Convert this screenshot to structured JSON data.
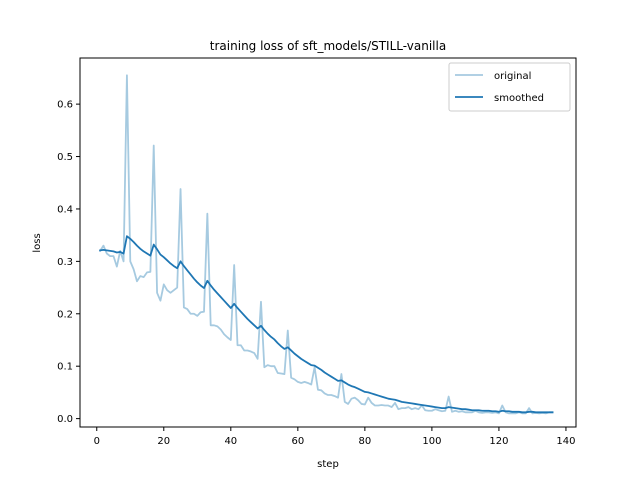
{
  "chart_data": {
    "type": "line",
    "title": "training loss of sft_models/STILL-vanilla",
    "xlabel": "step",
    "ylabel": "loss",
    "xlim": [
      -5,
      143
    ],
    "ylim": [
      -0.016,
      0.688
    ],
    "xticks": [
      0,
      20,
      40,
      60,
      80,
      100,
      120,
      140
    ],
    "yticks": [
      0.0,
      0.1,
      0.2,
      0.3,
      0.4,
      0.5,
      0.6
    ],
    "grid": false,
    "legend_position": "top-right",
    "series": [
      {
        "name": "original",
        "color": "#a6cae0",
        "x": [
          1,
          2,
          3,
          4,
          5,
          6,
          7,
          8,
          9,
          10,
          11,
          12,
          13,
          14,
          15,
          16,
          17,
          18,
          19,
          20,
          21,
          22,
          23,
          24,
          25,
          26,
          27,
          28,
          29,
          30,
          31,
          32,
          33,
          34,
          35,
          36,
          37,
          38,
          39,
          40,
          41,
          42,
          43,
          44,
          45,
          46,
          47,
          48,
          49,
          50,
          51,
          52,
          53,
          54,
          55,
          56,
          57,
          58,
          59,
          60,
          61,
          62,
          63,
          64,
          65,
          66,
          67,
          68,
          69,
          70,
          71,
          72,
          73,
          74,
          75,
          76,
          77,
          78,
          79,
          80,
          81,
          82,
          83,
          84,
          85,
          86,
          87,
          88,
          89,
          90,
          91,
          92,
          93,
          94,
          95,
          96,
          97,
          98,
          99,
          100,
          101,
          102,
          103,
          104,
          105,
          106,
          107,
          108,
          109,
          110,
          111,
          112,
          113,
          114,
          115,
          116,
          117,
          118,
          119,
          120,
          121,
          122,
          123,
          124,
          125,
          126,
          127,
          128,
          129,
          130,
          131,
          132,
          133,
          134,
          135,
          136
        ],
        "values": [
          0.32,
          0.33,
          0.315,
          0.31,
          0.31,
          0.29,
          0.32,
          0.3,
          0.655,
          0.3,
          0.285,
          0.262,
          0.272,
          0.27,
          0.279,
          0.28,
          0.521,
          0.24,
          0.225,
          0.256,
          0.245,
          0.24,
          0.245,
          0.25,
          0.438,
          0.212,
          0.209,
          0.2,
          0.2,
          0.196,
          0.203,
          0.204,
          0.391,
          0.178,
          0.178,
          0.176,
          0.17,
          0.161,
          0.155,
          0.15,
          0.293,
          0.14,
          0.14,
          0.13,
          0.13,
          0.128,
          0.125,
          0.114,
          0.223,
          0.098,
          0.102,
          0.1,
          0.1,
          0.087,
          0.086,
          0.085,
          0.168,
          0.078,
          0.075,
          0.07,
          0.068,
          0.07,
          0.068,
          0.065,
          0.098,
          0.055,
          0.054,
          0.048,
          0.045,
          0.045,
          0.043,
          0.04,
          0.085,
          0.032,
          0.028,
          0.038,
          0.04,
          0.035,
          0.028,
          0.027,
          0.04,
          0.03,
          0.025,
          0.025,
          0.026,
          0.025,
          0.025,
          0.022,
          0.03,
          0.018,
          0.02,
          0.02,
          0.022,
          0.018,
          0.02,
          0.018,
          0.025,
          0.016,
          0.015,
          0.015,
          0.018,
          0.016,
          0.014,
          0.015,
          0.042,
          0.013,
          0.015,
          0.013,
          0.014,
          0.012,
          0.012,
          0.012,
          0.015,
          0.012,
          0.011,
          0.012,
          0.012,
          0.011,
          0.012,
          0.01,
          0.025,
          0.012,
          0.01,
          0.01,
          0.01,
          0.012,
          0.01,
          0.01,
          0.02,
          0.01,
          0.011,
          0.01,
          0.011,
          0.01,
          0.012,
          0.012
        ]
      },
      {
        "name": "smoothed",
        "color": "#1f77b4",
        "x": [
          1,
          2,
          3,
          4,
          5,
          6,
          7,
          8,
          9,
          10,
          11,
          12,
          13,
          14,
          15,
          16,
          17,
          18,
          19,
          20,
          21,
          22,
          23,
          24,
          25,
          26,
          27,
          28,
          29,
          30,
          31,
          32,
          33,
          34,
          35,
          36,
          37,
          38,
          39,
          40,
          41,
          42,
          43,
          44,
          45,
          46,
          47,
          48,
          49,
          50,
          51,
          52,
          53,
          54,
          55,
          56,
          57,
          58,
          59,
          60,
          61,
          62,
          63,
          64,
          65,
          66,
          67,
          68,
          69,
          70,
          71,
          72,
          73,
          74,
          75,
          76,
          77,
          78,
          79,
          80,
          81,
          82,
          83,
          84,
          85,
          86,
          87,
          88,
          89,
          90,
          91,
          92,
          93,
          94,
          95,
          96,
          97,
          98,
          99,
          100,
          101,
          102,
          103,
          104,
          105,
          106,
          107,
          108,
          109,
          110,
          111,
          112,
          113,
          114,
          115,
          116,
          117,
          118,
          119,
          120,
          121,
          122,
          123,
          124,
          125,
          126,
          127,
          128,
          129,
          130,
          131,
          132,
          133,
          134,
          135,
          136
        ],
        "values": [
          0.321,
          0.322,
          0.321,
          0.32,
          0.319,
          0.317,
          0.318,
          0.315,
          0.348,
          0.343,
          0.337,
          0.33,
          0.324,
          0.319,
          0.315,
          0.311,
          0.332,
          0.323,
          0.313,
          0.308,
          0.302,
          0.296,
          0.291,
          0.287,
          0.3,
          0.291,
          0.283,
          0.275,
          0.267,
          0.26,
          0.254,
          0.249,
          0.263,
          0.254,
          0.246,
          0.239,
          0.232,
          0.225,
          0.218,
          0.211,
          0.219,
          0.211,
          0.204,
          0.197,
          0.19,
          0.184,
          0.178,
          0.172,
          0.177,
          0.169,
          0.162,
          0.156,
          0.151,
          0.144,
          0.138,
          0.133,
          0.136,
          0.13,
          0.124,
          0.119,
          0.114,
          0.11,
          0.106,
          0.102,
          0.101,
          0.097,
          0.093,
          0.088,
          0.084,
          0.08,
          0.076,
          0.072,
          0.073,
          0.069,
          0.065,
          0.062,
          0.06,
          0.057,
          0.054,
          0.051,
          0.05,
          0.048,
          0.046,
          0.044,
          0.042,
          0.04,
          0.038,
          0.037,
          0.036,
          0.034,
          0.032,
          0.031,
          0.03,
          0.029,
          0.028,
          0.027,
          0.026,
          0.025,
          0.024,
          0.023,
          0.022,
          0.021,
          0.02,
          0.02,
          0.022,
          0.021,
          0.02,
          0.019,
          0.018,
          0.018,
          0.017,
          0.016,
          0.016,
          0.016,
          0.015,
          0.015,
          0.015,
          0.014,
          0.014,
          0.013,
          0.015,
          0.014,
          0.014,
          0.013,
          0.013,
          0.013,
          0.012,
          0.012,
          0.013,
          0.013,
          0.012,
          0.012,
          0.012,
          0.012,
          0.012,
          0.012
        ]
      }
    ]
  }
}
